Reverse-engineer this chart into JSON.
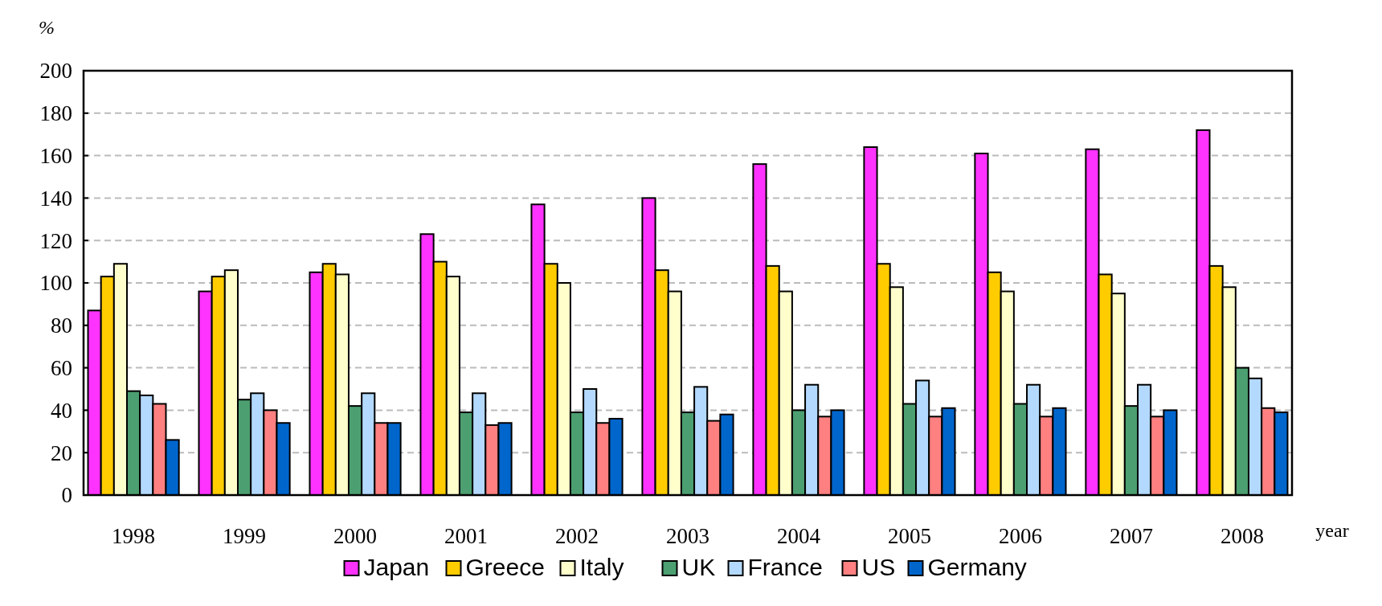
{
  "chart_data": {
    "type": "bar",
    "ylabel": "%",
    "xlabel": "year",
    "categories": [
      "1998",
      "1999",
      "2000",
      "2001",
      "2002",
      "2003",
      "2004",
      "2005",
      "2006",
      "2007",
      "2008"
    ],
    "series": [
      {
        "name": "Japan",
        "color": "#ff33ff",
        "values": [
          87,
          96,
          105,
          123,
          137,
          140,
          156,
          164,
          161,
          163,
          172
        ]
      },
      {
        "name": "Greece",
        "color": "#ffcc00",
        "values": [
          103,
          103,
          109,
          110,
          109,
          106,
          108,
          109,
          105,
          104,
          108
        ]
      },
      {
        "name": "Italy",
        "color": "#ffffcc",
        "values": [
          109,
          106,
          104,
          103,
          100,
          96,
          96,
          98,
          96,
          95,
          98
        ]
      },
      {
        "name": "UK",
        "color": "#4c9f70",
        "values": [
          49,
          45,
          42,
          39,
          39,
          39,
          40,
          43,
          43,
          42,
          60
        ]
      },
      {
        "name": "France",
        "color": "#b3d9ff",
        "values": [
          47,
          48,
          48,
          48,
          50,
          51,
          52,
          54,
          52,
          52,
          55
        ]
      },
      {
        "name": "US",
        "color": "#ff8080",
        "values": [
          43,
          40,
          34,
          33,
          34,
          35,
          37,
          37,
          37,
          37,
          41
        ]
      },
      {
        "name": "Germany",
        "color": "#0066cc",
        "values": [
          26,
          34,
          34,
          34,
          36,
          38,
          40,
          41,
          41,
          40,
          39
        ]
      }
    ],
    "ylim": [
      0,
      200
    ],
    "yticks": [
      0,
      20,
      40,
      60,
      80,
      100,
      120,
      140,
      160,
      180,
      200
    ],
    "grid": "y",
    "legend": "bottom"
  }
}
